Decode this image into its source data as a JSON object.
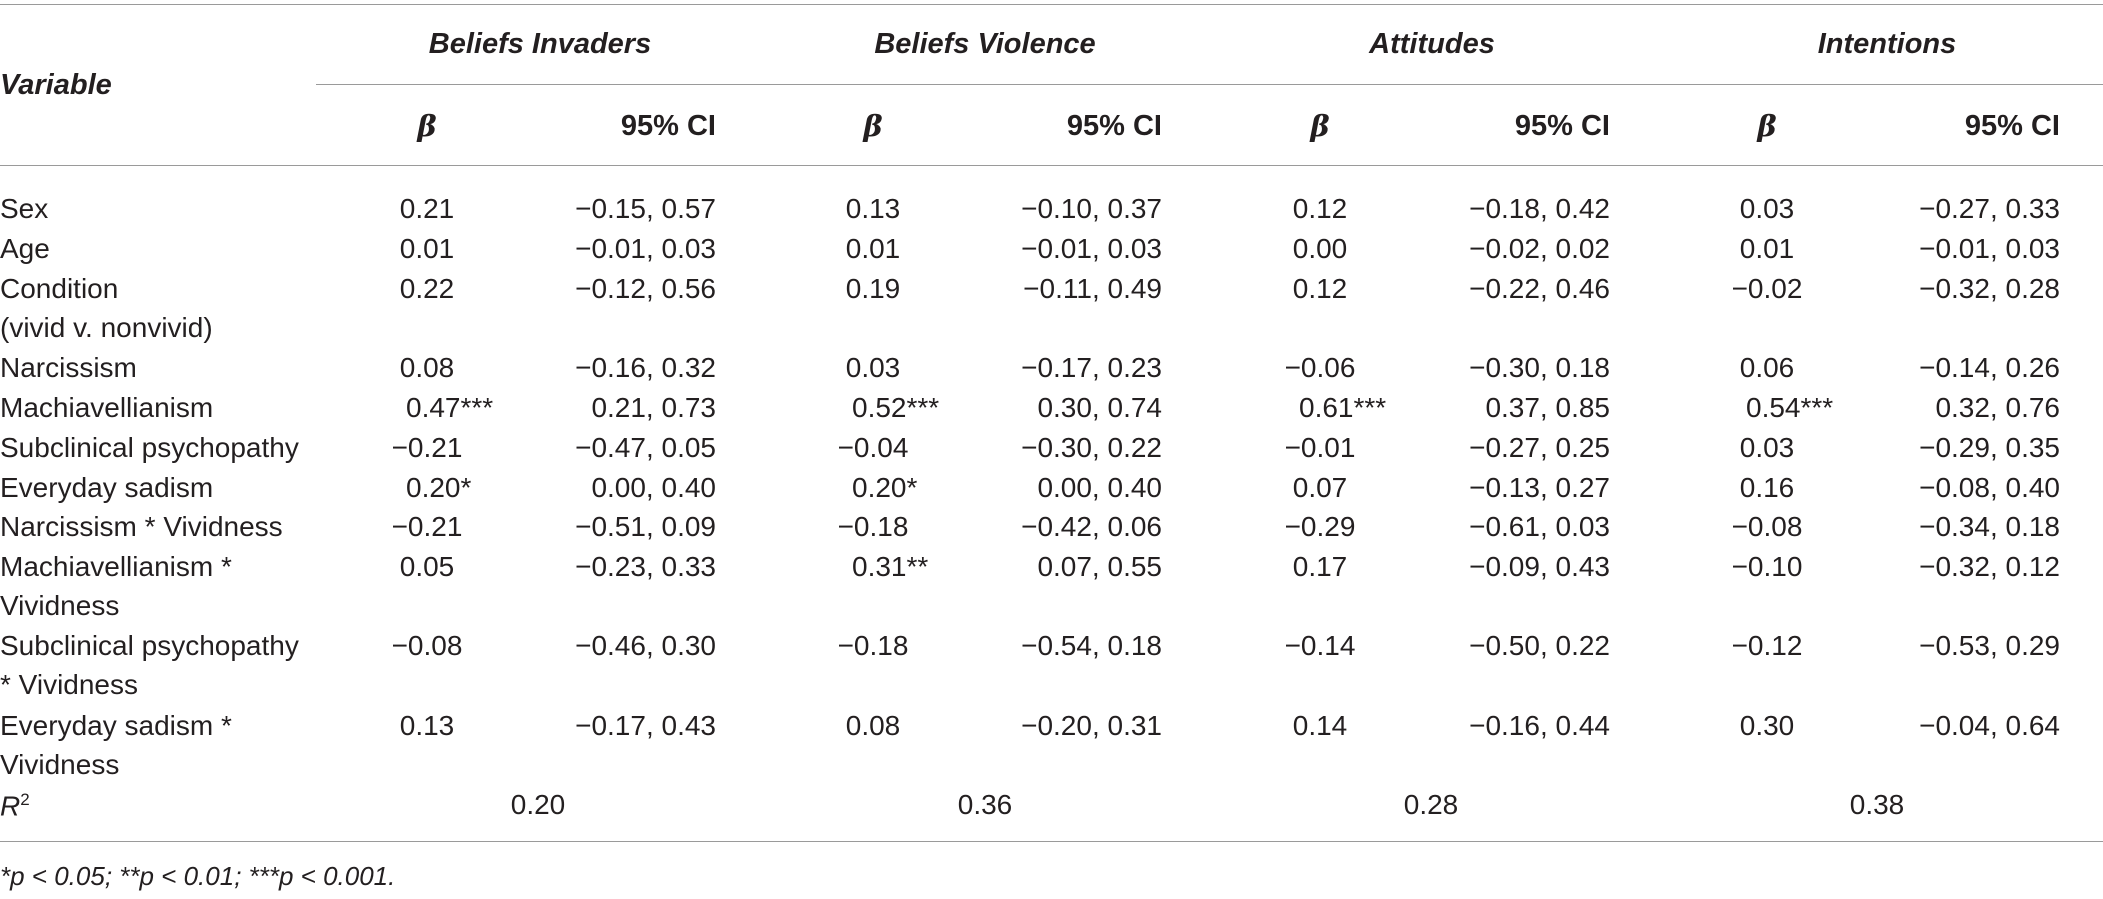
{
  "table": {
    "variable_header": "Variable",
    "groups": [
      {
        "title": "Beliefs Invaders",
        "beta_label": "β",
        "ci_label": "95% CI"
      },
      {
        "title": "Beliefs Violence",
        "beta_label": "β",
        "ci_label": "95% CI"
      },
      {
        "title": "Attitudes",
        "beta_label": "β",
        "ci_label": "95% CI"
      },
      {
        "title": "Intentions",
        "beta_label": "β",
        "ci_label": "95% CI"
      }
    ],
    "rows": [
      {
        "label": [
          "Sex"
        ],
        "cells": [
          [
            "0.21",
            "−0.15, 0.57"
          ],
          [
            "0.13",
            "−0.10, 0.37"
          ],
          [
            "0.12",
            "−0.18, 0.42"
          ],
          [
            "0.03",
            "−0.27, 0.33"
          ]
        ]
      },
      {
        "label": [
          "Age"
        ],
        "cells": [
          [
            "0.01",
            "−0.01, 0.03"
          ],
          [
            "0.01",
            "−0.01, 0.03"
          ],
          [
            "0.00",
            "−0.02, 0.02"
          ],
          [
            "0.01",
            "−0.01, 0.03"
          ]
        ]
      },
      {
        "label": [
          "Condition",
          "(vivid v. nonvivid)"
        ],
        "cells": [
          [
            "0.22",
            "−0.12, 0.56"
          ],
          [
            "0.19",
            "−0.11, 0.49"
          ],
          [
            "0.12",
            "−0.22, 0.46"
          ],
          [
            "−0.02",
            "−0.32, 0.28"
          ]
        ]
      },
      {
        "label": [
          "Narcissism"
        ],
        "cells": [
          [
            "0.08",
            "−0.16, 0.32"
          ],
          [
            "0.03",
            "−0.17, 0.23"
          ],
          [
            "−0.06",
            "−0.30, 0.18"
          ],
          [
            "0.06",
            "−0.14, 0.26"
          ]
        ]
      },
      {
        "label": [
          "Machiavellianism"
        ],
        "cells": [
          [
            "0.47***",
            "0.21, 0.73"
          ],
          [
            "0.52***",
            "0.30, 0.74"
          ],
          [
            "0.61***",
            "0.37, 0.85"
          ],
          [
            "0.54***",
            "0.32, 0.76"
          ]
        ]
      },
      {
        "label": [
          "Subclinical psychopathy"
        ],
        "cells": [
          [
            "−0.21",
            "−0.47, 0.05"
          ],
          [
            "−0.04",
            "−0.30, 0.22"
          ],
          [
            "−0.01",
            "−0.27, 0.25"
          ],
          [
            "0.03",
            "−0.29, 0.35"
          ]
        ]
      },
      {
        "label": [
          "Everyday sadism"
        ],
        "cells": [
          [
            "0.20*",
            "0.00, 0.40"
          ],
          [
            "0.20*",
            "0.00, 0.40"
          ],
          [
            "0.07",
            "−0.13, 0.27"
          ],
          [
            "0.16",
            "−0.08, 0.40"
          ]
        ]
      },
      {
        "label": [
          "Narcissism * Vividness"
        ],
        "cells": [
          [
            "−0.21",
            "−0.51, 0.09"
          ],
          [
            "−0.18",
            "−0.42, 0.06"
          ],
          [
            "−0.29",
            "−0.61, 0.03"
          ],
          [
            "−0.08",
            "−0.34, 0.18"
          ]
        ]
      },
      {
        "label": [
          "Machiavellianism *",
          "Vividness"
        ],
        "cells": [
          [
            "0.05",
            "−0.23, 0.33"
          ],
          [
            "0.31**",
            "0.07, 0.55"
          ],
          [
            "0.17",
            "−0.09, 0.43"
          ],
          [
            "−0.10",
            "−0.32, 0.12"
          ]
        ]
      },
      {
        "label": [
          "Subclinical psychopathy",
          "* Vividness"
        ],
        "cells": [
          [
            "−0.08",
            "−0.46, 0.30"
          ],
          [
            "−0.18",
            "−0.54, 0.18"
          ],
          [
            "−0.14",
            "−0.50, 0.22"
          ],
          [
            "−0.12",
            "−0.53, 0.29"
          ]
        ]
      },
      {
        "label": [
          "Everyday sadism *",
          "Vividness"
        ],
        "cells": [
          [
            "0.13",
            "−0.17, 0.43"
          ],
          [
            "0.08",
            "−0.20, 0.31"
          ],
          [
            "0.14",
            "−0.16, 0.44"
          ],
          [
            "0.30",
            "−0.04, 0.64"
          ]
        ]
      }
    ],
    "r2": {
      "label": "R",
      "sup": "2",
      "values": [
        "0.20",
        "0.36",
        "0.28",
        "0.38"
      ]
    },
    "footnote": "*p < 0.05; **p < 0.01; ***p < 0.001."
  }
}
